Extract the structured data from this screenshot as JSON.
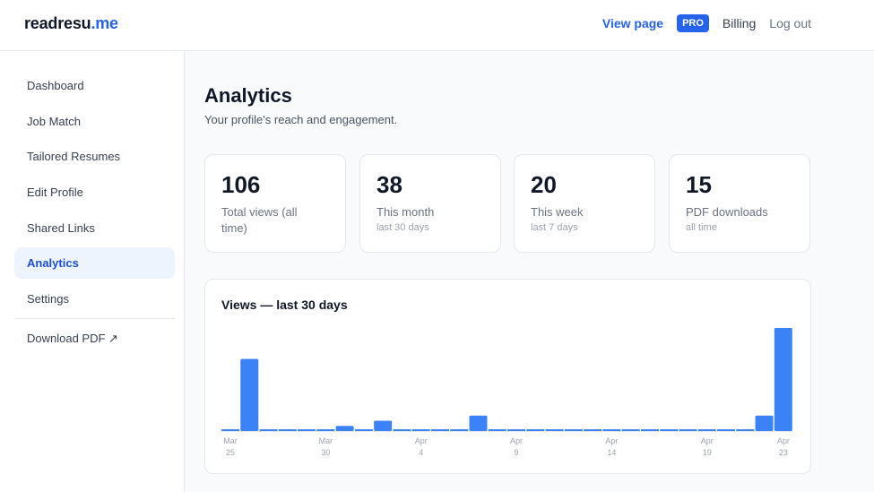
{
  "header": {
    "logo_main": "readresu",
    "logo_accent": ".me",
    "view_page": "View page",
    "pro_badge": "PRO",
    "billing": "Billing",
    "logout": "Log out"
  },
  "sidebar": {
    "items": [
      {
        "label": "Dashboard"
      },
      {
        "label": "Job Match"
      },
      {
        "label": "Tailored Resumes"
      },
      {
        "label": "Edit Profile"
      },
      {
        "label": "Shared Links"
      },
      {
        "label": "Analytics",
        "active": true
      },
      {
        "label": "Settings"
      },
      {
        "label": "Download PDF ↗"
      }
    ]
  },
  "page": {
    "title": "Analytics",
    "subtitle": "Your profile's reach and engagement."
  },
  "stats": [
    {
      "value": "106",
      "label": "Total views (all time)",
      "sub": ""
    },
    {
      "value": "38",
      "label": "This month",
      "sub": "last 30 days"
    },
    {
      "value": "20",
      "label": "This week",
      "sub": "last 7 days"
    },
    {
      "value": "15",
      "label": "PDF downloads",
      "sub": "all time"
    }
  ],
  "colors": {
    "accent": "#2563eb",
    "bar": "#3b82f6"
  },
  "chart_data": {
    "type": "bar",
    "title": "Views — last 30 days",
    "x": [
      "Mar 25",
      "Mar 26",
      "Mar 27",
      "Mar 28",
      "Mar 29",
      "Mar 30",
      "Mar 31",
      "Apr 1",
      "Apr 2",
      "Apr 3",
      "Apr 4",
      "Apr 5",
      "Apr 6",
      "Apr 7",
      "Apr 8",
      "Apr 9",
      "Apr 10",
      "Apr 11",
      "Apr 12",
      "Apr 13",
      "Apr 14",
      "Apr 15",
      "Apr 16",
      "Apr 17",
      "Apr 18",
      "Apr 19",
      "Apr 20",
      "Apr 21",
      "Apr 22",
      "Apr 23"
    ],
    "values": [
      0,
      7,
      0,
      0,
      0,
      0,
      0.5,
      0,
      1,
      0,
      0,
      0,
      0,
      1.5,
      0,
      0,
      0,
      0,
      0,
      0,
      0,
      0,
      0,
      0,
      0,
      0,
      0,
      0,
      1.5,
      10
    ],
    "tick_labels": [
      {
        "index": 0,
        "month": "Mar",
        "day": "25"
      },
      {
        "index": 5,
        "month": "Mar",
        "day": "30"
      },
      {
        "index": 10,
        "month": "Apr",
        "day": "4"
      },
      {
        "index": 15,
        "month": "Apr",
        "day": "9"
      },
      {
        "index": 20,
        "month": "Apr",
        "day": "14"
      },
      {
        "index": 25,
        "month": "Apr",
        "day": "19"
      },
      {
        "index": 29,
        "month": "Apr",
        "day": "23"
      }
    ],
    "ylim": [
      0,
      10
    ],
    "grid": false
  }
}
